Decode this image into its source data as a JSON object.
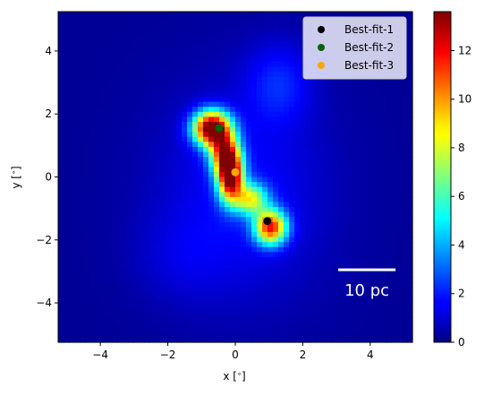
{
  "chart_data": {
    "type": "heatmap",
    "xlabel": "x [$^\\circ$]",
    "ylabel": "y [$^\\circ$]",
    "xlim": [
      -5.25,
      5.25
    ],
    "ylim": [
      -5.25,
      5.25
    ],
    "x_ticks": [
      -4,
      -2,
      0,
      2,
      4
    ],
    "y_ticks": [
      -4,
      -2,
      0,
      2,
      4
    ],
    "x_tick_labels": [
      "−4",
      "−2",
      "0",
      "2",
      "4"
    ],
    "y_tick_labels": [
      "−4",
      "−2",
      "0",
      "2",
      "4"
    ],
    "grid": false,
    "legend_position": "top-right",
    "colormap": "jet",
    "colorbar": {
      "min": 0,
      "max": 13.6,
      "ticks": [
        0,
        2,
        4,
        6,
        8,
        10,
        12
      ],
      "tick_labels": [
        "0",
        "2",
        "4",
        "6",
        "8",
        "10",
        "12"
      ]
    },
    "intensity_blobs": [
      {
        "x": -0.7,
        "y": 1.55,
        "peak": 13.6,
        "sigma_x": 0.38,
        "sigma_y": 0.38
      },
      {
        "x": -0.15,
        "y": 0.05,
        "peak": 13.2,
        "sigma_x": 0.26,
        "sigma_y": 0.55
      },
      {
        "x": 1.05,
        "y": -1.6,
        "peak": 10.5,
        "sigma_x": 0.33,
        "sigma_y": 0.38
      },
      {
        "x": 0.45,
        "y": -0.7,
        "peak": 6.5,
        "sigma_x": 0.35,
        "sigma_y": 0.35
      },
      {
        "x": -0.35,
        "y": 0.8,
        "peak": 8.0,
        "sigma_x": 0.3,
        "sigma_y": 0.45
      },
      {
        "x": 1.3,
        "y": 3.0,
        "peak": 1.6,
        "sigma_x": 0.7,
        "sigma_y": 0.9
      },
      {
        "x": 0.2,
        "y": -0.5,
        "peak": 1.5,
        "sigma_x": 1.8,
        "sigma_y": 2.4
      },
      {
        "x": -1.6,
        "y": -2.6,
        "peak": 0.6,
        "sigma_x": 1.0,
        "sigma_y": 1.0
      }
    ],
    "background_level": 0.3,
    "series": [
      {
        "name": "Best-fit-1",
        "color": "#000000",
        "x": [
          0.95
        ],
        "y": [
          -1.4
        ]
      },
      {
        "name": "Best-fit-2",
        "color": "#006400",
        "x": [
          -0.48
        ],
        "y": [
          1.55
        ]
      },
      {
        "name": "Best-fit-3",
        "color": "#ffa500",
        "x": [
          0.0
        ],
        "y": [
          0.15
        ]
      }
    ],
    "scale_bar": {
      "label": "10 pc",
      "x_start": 3.05,
      "x_end": 4.75,
      "y": -2.95,
      "color": "#ffffff"
    }
  }
}
